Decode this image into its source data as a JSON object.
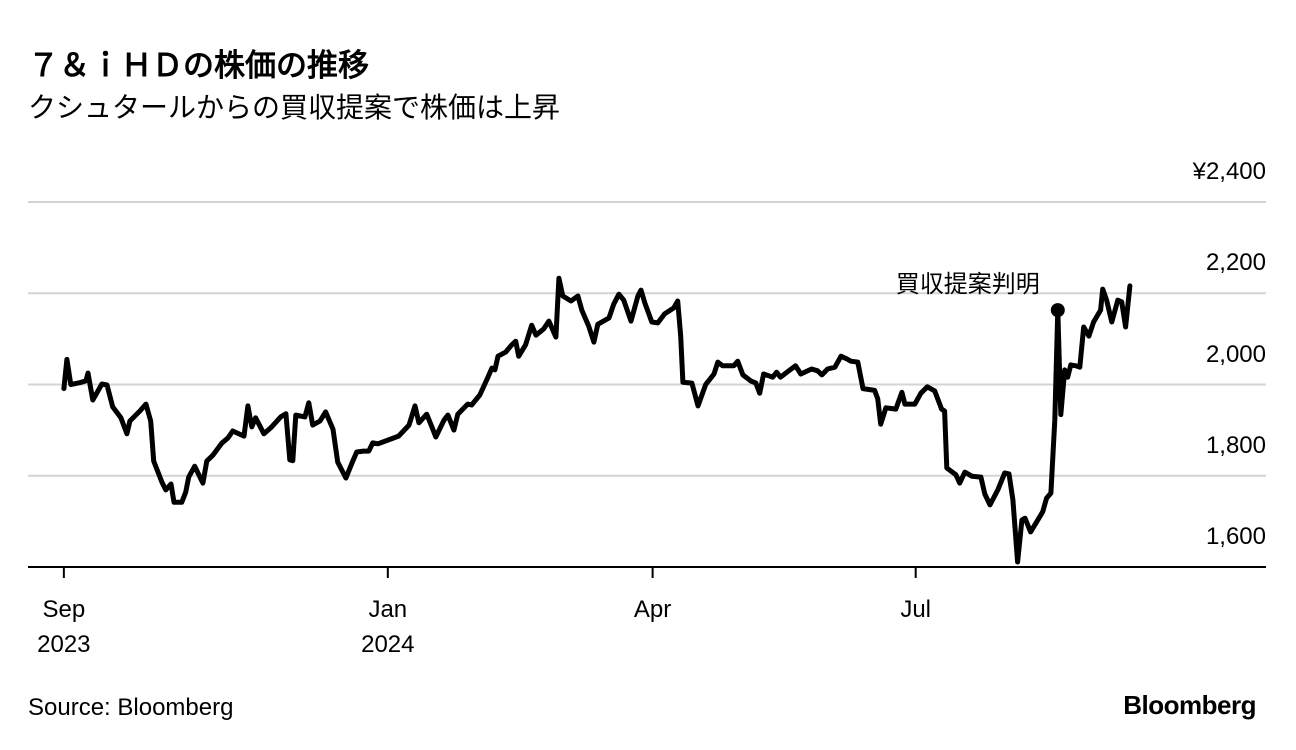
{
  "chart_data": {
    "type": "line",
    "title": "７＆ｉＨＤの株価の推移",
    "subtitle": "クシュタールからの買収提案で株価は上昇",
    "source": "Source: Bloomberg",
    "brand": "Bloomberg",
    "color": "#000000",
    "grid": true,
    "xlim": [
      -8.3,
      278.3
    ],
    "xticks": [
      {
        "value": 0,
        "label": "Sep 2023"
      },
      {
        "value": 75,
        "label": "Jan 2024"
      },
      {
        "value": 136.3,
        "label": "Apr"
      },
      {
        "value": 197.2,
        "label": "Jul"
      }
    ],
    "ylim": [
      1600,
      2400
    ],
    "yticks": [
      {
        "value": 1600,
        "label": "1,600"
      },
      {
        "value": 1800,
        "label": "1,800"
      },
      {
        "value": 2000,
        "label": "2,000"
      },
      {
        "value": 2200,
        "label": "2,200"
      },
      {
        "value": 2400,
        "label": "¥2,400"
      }
    ],
    "annotation": {
      "text": "買収提案判明",
      "x": 230.1,
      "y": 2163
    },
    "x": [
      0,
      0.7,
      1.6,
      3.7,
      5.1,
      5.6,
      6.7,
      8.8,
      10,
      11.3,
      13.2,
      14.6,
      15.3,
      17.6,
      19,
      20.1,
      20.8,
      22.7,
      23.6,
      24.8,
      25.5,
      27.3,
      28.2,
      28.9,
      30.3,
      32.2,
      33.1,
      34.5,
      36.6,
      38,
      39.1,
      41.7,
      42.6,
      43.5,
      44.4,
      46.3,
      47.9,
      50.2,
      51.4,
      52.3,
      53,
      53.7,
      55.8,
      56.7,
      57.6,
      59.3,
      60.6,
      62.3,
      63.4,
      65.3,
      66.7,
      67.8,
      69.4,
      70.6,
      71.5,
      72.7,
      77.5,
      79.9,
      81.3,
      82.2,
      84,
      85.2,
      86.1,
      88,
      88.9,
      90.3,
      91.2,
      93.5,
      94.4,
      96.3,
      97.9,
      99.1,
      99.8,
      100.5,
      102.3,
      103.7,
      104.6,
      105.3,
      106.9,
      108.3,
      109.3,
      111.1,
      112.3,
      113.9,
      114.6,
      115.5,
      117.4,
      119,
      119.9,
      121.5,
      122.7,
      123.6,
      126.2,
      127.3,
      128.5,
      129.6,
      131.3,
      132.9,
      133.6,
      134.5,
      136.1,
      137.5,
      139.1,
      141.2,
      142.1,
      142.8,
      143.3,
      145.4,
      146.8,
      148.6,
      150.5,
      151.4,
      152.5,
      155.1,
      156,
      157.2,
      159,
      160.2,
      161.1,
      162,
      164.1,
      165,
      165.9,
      168.1,
      169.4,
      170.6,
      173.1,
      174.5,
      175.5,
      176.8,
      178.5,
      179.9,
      181.3,
      182.2,
      183.8,
      185,
      187.7,
      188.4,
      189.1,
      190.3,
      192.6,
      194,
      194.7,
      197,
      198.4,
      199.9,
      201.6,
      203.2,
      203.9,
      204.4,
      206.5,
      207.4,
      208.6,
      210.2,
      212.3,
      213.2,
      214.4,
      216.2,
      217.8,
      218.8,
      219.7,
      220.8,
      221.8,
      222.5,
      223.8,
      226.6,
      227.5,
      228.5,
      229.4,
      230.1,
      230.8,
      231.7,
      232.4,
      233.1,
      234.3,
      235.2,
      236.1,
      237.3,
      238.4,
      240,
      240.5,
      241.4,
      242.6,
      244,
      244.9,
      245.8,
      246.8
    ],
    "values": [
      1991,
      2055,
      2000,
      2004,
      2008,
      2025,
      1966,
      2001,
      1999,
      1951,
      1927,
      1892,
      1920,
      1942,
      1957,
      1920,
      1832,
      1786,
      1769,
      1782,
      1742,
      1742,
      1764,
      1797,
      1821,
      1784,
      1832,
      1845,
      1872,
      1883,
      1898,
      1887,
      1953,
      1907,
      1927,
      1892,
      1905,
      1929,
      1936,
      1835,
      1833,
      1933,
      1929,
      1960,
      1911,
      1920,
      1940,
      1902,
      1830,
      1795,
      1828,
      1852,
      1854,
      1854,
      1872,
      1870,
      1887,
      1911,
      1953,
      1916,
      1935,
      1907,
      1885,
      1922,
      1933,
      1900,
      1935,
      1957,
      1955,
      1977,
      2010,
      2036,
      2032,
      2062,
      2071,
      2087,
      2095,
      2062,
      2087,
      2130,
      2108,
      2122,
      2139,
      2104,
      2233,
      2194,
      2183,
      2194,
      2163,
      2128,
      2093,
      2132,
      2146,
      2176,
      2198,
      2185,
      2139,
      2194,
      2207,
      2179,
      2137,
      2135,
      2155,
      2168,
      2183,
      2106,
      2005,
      2003,
      1953,
      2000,
      2023,
      2049,
      2041,
      2041,
      2051,
      2021,
      2008,
      2003,
      1981,
      2023,
      2016,
      2027,
      2016,
      2032,
      2041,
      2023,
      2034,
      2030,
      2021,
      2034,
      2038,
      2062,
      2056,
      2051,
      2049,
      1991,
      1987,
      1969,
      1913,
      1949,
      1946,
      1983,
      1957,
      1957,
      1981,
      1995,
      1986,
      1946,
      1942,
      1817,
      1802,
      1784,
      1808,
      1799,
      1797,
      1760,
      1736,
      1769,
      1806,
      1804,
      1747,
      1611,
      1703,
      1707,
      1677,
      1721,
      1751,
      1762,
      1922,
      2163,
      1934,
      2032,
      2016,
      2043,
      2041,
      2038,
      2126,
      2106,
      2137,
      2163,
      2209,
      2185,
      2137,
      2185,
      2181,
      2126,
      2216
    ]
  }
}
